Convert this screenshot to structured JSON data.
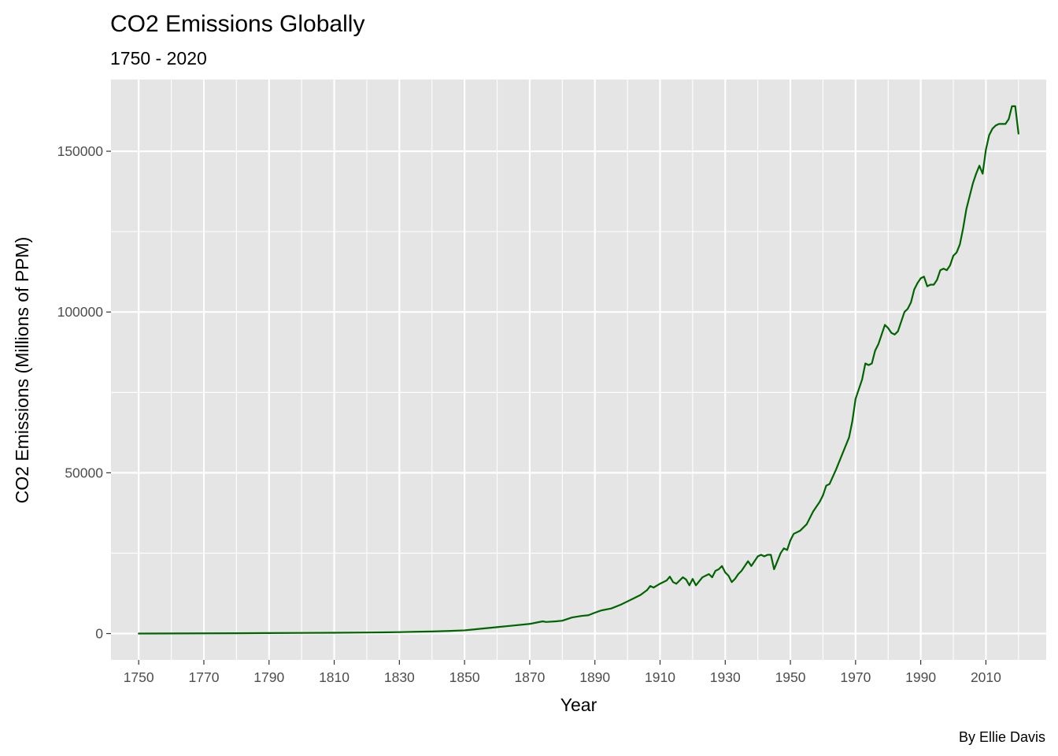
{
  "chart_data": {
    "type": "line",
    "title": "CO2 Emissions Globally",
    "subtitle": "1750 - 2020",
    "xlabel": "Year",
    "ylabel": "CO2 Emissions (Millions of PPM)",
    "caption": "By Ellie Davis",
    "xlim": [
      1741.5,
      2028.5
    ],
    "ylim": [
      -8200,
      172300
    ],
    "x_ticks": [
      1750,
      1770,
      1790,
      1810,
      1830,
      1850,
      1870,
      1890,
      1910,
      1930,
      1950,
      1970,
      1990,
      2010
    ],
    "x_tick_labels": [
      "1750",
      "1770",
      "1790",
      "1810",
      "1830",
      "1850",
      "1870",
      "1890",
      "1910",
      "1930",
      "1950",
      "1970",
      "1990",
      "2010"
    ],
    "y_ticks": [
      0,
      50000,
      100000,
      150000
    ],
    "y_tick_labels": [
      "0",
      "50000",
      "100000",
      "150000"
    ],
    "grid": true,
    "line_color": "#006400",
    "panel_color": "#e5e5e5",
    "series": [
      {
        "x": [
          1750,
          1760,
          1770,
          1780,
          1790,
          1800,
          1810,
          1820,
          1825,
          1830,
          1835,
          1840,
          1845,
          1850,
          1852,
          1855,
          1860,
          1865,
          1870,
          1872,
          1874,
          1875,
          1878,
          1880,
          1883,
          1886,
          1888,
          1890,
          1892,
          1895,
          1898,
          1900,
          1902,
          1904,
          1906,
          1907,
          1908,
          1910,
          1912,
          1913,
          1914,
          1915,
          1917,
          1918,
          1919,
          1920,
          1921,
          1923,
          1925,
          1926,
          1927,
          1928,
          1929,
          1930,
          1931,
          1932,
          1933,
          1934,
          1935,
          1936,
          1937,
          1938,
          1939,
          1940,
          1941,
          1942,
          1943,
          1944,
          1945,
          1946,
          1947,
          1948,
          1949,
          1950,
          1951,
          1953,
          1955,
          1957,
          1959,
          1960,
          1961,
          1962,
          1964,
          1966,
          1968,
          1969,
          1970,
          1972,
          1973,
          1974,
          1975,
          1976,
          1977,
          1978,
          1979,
          1980,
          1981,
          1982,
          1983,
          1984,
          1985,
          1986,
          1987,
          1988,
          1989,
          1990,
          1991,
          1992,
          1993,
          1994,
          1995,
          1996,
          1997,
          1998,
          1999,
          2000,
          2001,
          2002,
          2003,
          2004,
          2005,
          2006,
          2007,
          2008,
          2009,
          2010,
          2011,
          2012,
          2013,
          2014,
          2015,
          2016,
          2017,
          2018,
          2019,
          2020
        ],
        "y": [
          0,
          30,
          60,
          100,
          150,
          200,
          250,
          320,
          380,
          450,
          550,
          650,
          800,
          1000,
          1200,
          1500,
          2000,
          2500,
          3000,
          3400,
          3800,
          3600,
          3800,
          4000,
          5000,
          5500,
          5700,
          6500,
          7200,
          7800,
          9000,
          10000,
          11000,
          12000,
          13500,
          14800,
          14300,
          15500,
          16500,
          17700,
          16000,
          15500,
          17500,
          16800,
          15000,
          17000,
          15000,
          17500,
          18500,
          17500,
          19500,
          20000,
          21000,
          19000,
          18000,
          16000,
          17000,
          18500,
          19500,
          21000,
          22500,
          21000,
          22500,
          24000,
          24500,
          24000,
          24500,
          24500,
          20000,
          22500,
          25000,
          26500,
          26000,
          29000,
          31000,
          32000,
          34000,
          38000,
          41000,
          43000,
          46000,
          46500,
          51000,
          56000,
          61000,
          66000,
          73000,
          79000,
          84000,
          83500,
          84000,
          88000,
          90000,
          93000,
          96000,
          95000,
          93500,
          93000,
          94000,
          97000,
          100000,
          101000,
          103000,
          107000,
          109000,
          110500,
          111000,
          108000,
          108500,
          108500,
          110000,
          113000,
          113500,
          113000,
          114500,
          117500,
          118500,
          121000,
          126000,
          132000,
          136000,
          140000,
          143000,
          145500,
          143000,
          150500,
          155000,
          157000,
          158000,
          158500,
          158500,
          158500,
          160000,
          164000,
          164000,
          155500
        ]
      }
    ]
  }
}
